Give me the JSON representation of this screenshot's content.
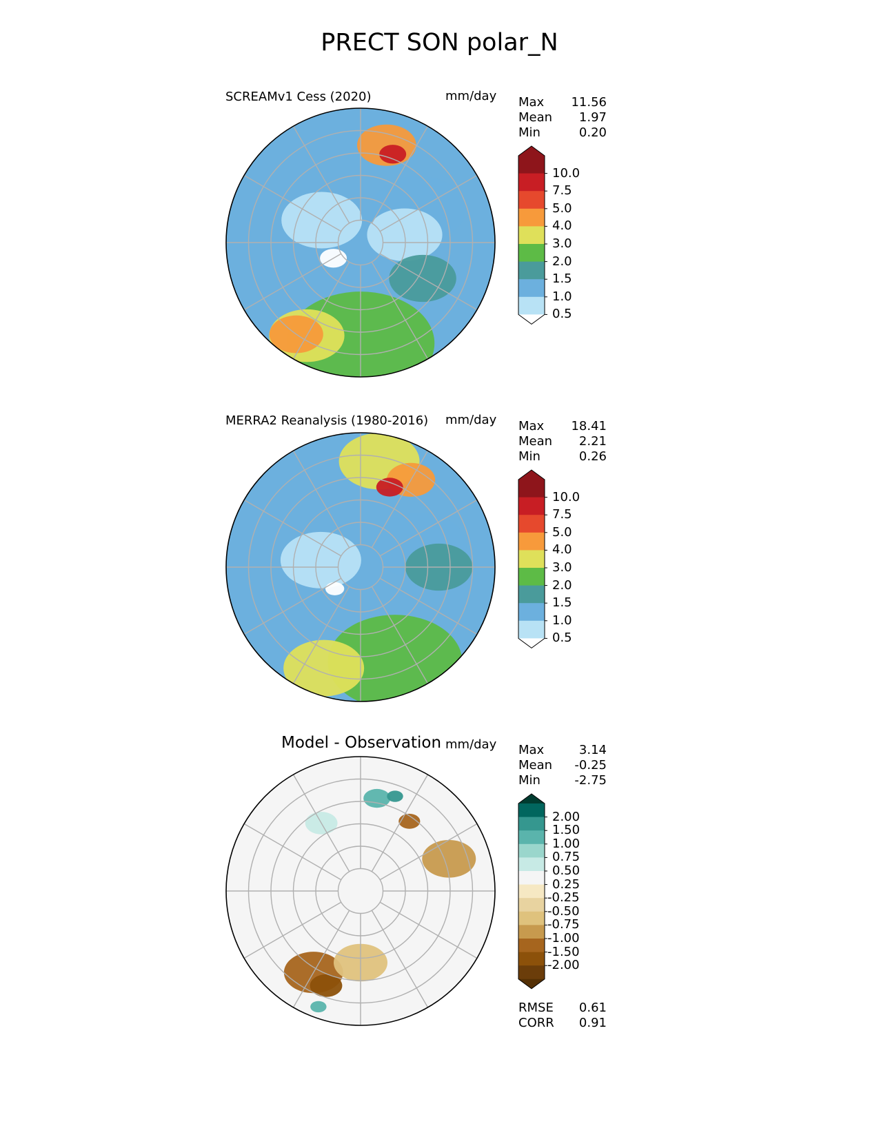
{
  "figure": {
    "title": "PRECT SON polar_N"
  },
  "panels": [
    {
      "id": "test",
      "title": "SCREAMv1 Cess (2020)",
      "units": "mm/day",
      "stats": [
        {
          "label": "Max",
          "value": "11.56"
        },
        {
          "label": "Mean",
          "value": "1.97"
        },
        {
          "label": "Min",
          "value": "0.20"
        }
      ],
      "colorbar": {
        "ticks": [
          "10.0",
          "7.5",
          "5.0",
          "4.0",
          "3.0",
          "2.0",
          "1.5",
          "1.0",
          "0.5"
        ],
        "colors": [
          "#8e151b",
          "#c81e24",
          "#e6492d",
          "#f79a3b",
          "#dfe05a",
          "#5dbb46",
          "#4a9b9b",
          "#6cb0de",
          "#b8e2f5"
        ],
        "over": "#8e151b",
        "under": "#ffffff"
      },
      "map_blobs": [
        {
          "c": "#5dbb46",
          "lon": 0,
          "lat": 45,
          "r": 0.55
        },
        {
          "c": "#dfe05a",
          "lon": -30,
          "lat": 42,
          "r": 0.28
        },
        {
          "c": "#f79a3b",
          "lon": -35,
          "lat": 40,
          "r": 0.2
        },
        {
          "c": "#6cb0de",
          "lon": 120,
          "lat": 60,
          "r": 0.35
        },
        {
          "c": "#b8e2f5",
          "lon": 100,
          "lat": 70,
          "r": 0.28
        },
        {
          "c": "#b8e2f5",
          "lon": -120,
          "lat": 70,
          "r": 0.3
        },
        {
          "c": "#ffffff",
          "lon": -60,
          "lat": 76,
          "r": 0.1
        },
        {
          "c": "#f79a3b",
          "lon": 165,
          "lat": 45,
          "r": 0.22
        },
        {
          "c": "#c81e24",
          "lon": 160,
          "lat": 48,
          "r": 0.1
        },
        {
          "c": "#4a9b9b",
          "lon": 60,
          "lat": 58,
          "r": 0.25
        }
      ],
      "cbar_kind": "precip"
    },
    {
      "id": "ref",
      "title": "MERRA2 Reanalysis (1980-2016)",
      "units": "mm/day",
      "stats": [
        {
          "label": "Max",
          "value": "18.41"
        },
        {
          "label": "Mean",
          "value": "2.21"
        },
        {
          "label": "Min",
          "value": "0.26"
        }
      ],
      "colorbar": {
        "ticks": [
          "10.0",
          "7.5",
          "5.0",
          "4.0",
          "3.0",
          "2.0",
          "1.5",
          "1.0",
          "0.5"
        ],
        "colors": [
          "#8e151b",
          "#c81e24",
          "#e6492d",
          "#f79a3b",
          "#dfe05a",
          "#5dbb46",
          "#4a9b9b",
          "#6cb0de",
          "#b8e2f5"
        ],
        "over": "#8e151b",
        "under": "#ffffff"
      },
      "map_blobs": [
        {
          "c": "#5dbb46",
          "lon": 20,
          "lat": 45,
          "r": 0.5
        },
        {
          "c": "#dfe05a",
          "lon": -20,
          "lat": 42,
          "r": 0.3
        },
        {
          "c": "#dfe05a",
          "lon": 170,
          "lat": 42,
          "r": 0.3
        },
        {
          "c": "#f79a3b",
          "lon": 150,
          "lat": 45,
          "r": 0.18
        },
        {
          "c": "#c81e24",
          "lon": 160,
          "lat": 52,
          "r": 0.1
        },
        {
          "c": "#6cb0de",
          "lon": 110,
          "lat": 62,
          "r": 0.35
        },
        {
          "c": "#b8e2f5",
          "lon": -100,
          "lat": 72,
          "r": 0.3
        },
        {
          "c": "#ffffff",
          "lon": -50,
          "lat": 75,
          "r": 0.07
        },
        {
          "c": "#4a9b9b",
          "lon": 90,
          "lat": 55,
          "r": 0.25
        }
      ],
      "cbar_kind": "precip"
    },
    {
      "id": "diff",
      "title": "Model - Observation",
      "units": "mm/day",
      "stats": [
        {
          "label": "Max",
          "value": "3.14"
        },
        {
          "label": "Mean",
          "value": "-0.25"
        },
        {
          "label": "Min",
          "value": "-2.75"
        }
      ],
      "colorbar": {
        "ticks": [
          "2.00",
          "1.50",
          "1.00",
          "0.75",
          "0.50",
          "0.25",
          "-0.25",
          "-0.50",
          "-0.75",
          "-1.00",
          "-1.50",
          "-2.00"
        ],
        "colors": [
          "#01665e",
          "#35978f",
          "#5ab4ac",
          "#9ad6cc",
          "#c7eae5",
          "#f5f5f5",
          "#f6e8c3",
          "#e8d3a0",
          "#dfc27d",
          "#c79a4e",
          "#a6651e",
          "#8c510a",
          "#6b3d0a"
        ],
        "over": "#003c30",
        "under": "#543005"
      },
      "map_blobs": [
        {
          "c": "#a6651e",
          "lon": -30,
          "lat": 48,
          "r": 0.22
        },
        {
          "c": "#8c510a",
          "lon": -20,
          "lat": 45,
          "r": 0.12
        },
        {
          "c": "#c79a4e",
          "lon": 110,
          "lat": 48,
          "r": 0.2
        },
        {
          "c": "#dfc27d",
          "lon": 0,
          "lat": 58,
          "r": 0.2
        },
        {
          "c": "#5ab4ac",
          "lon": 170,
          "lat": 48,
          "r": 0.1
        },
        {
          "c": "#35978f",
          "lon": 160,
          "lat": 45,
          "r": 0.06
        },
        {
          "c": "#c7eae5",
          "lon": -150,
          "lat": 55,
          "r": 0.12
        },
        {
          "c": "#a6651e",
          "lon": 145,
          "lat": 52,
          "r": 0.08
        },
        {
          "c": "#5ab4ac",
          "lon": -20,
          "lat": 35,
          "r": 0.06
        }
      ],
      "footer": [
        {
          "label": "RMSE",
          "value": "0.61"
        },
        {
          "label": "CORR",
          "value": "0.91"
        }
      ],
      "cbar_kind": "diff"
    }
  ]
}
